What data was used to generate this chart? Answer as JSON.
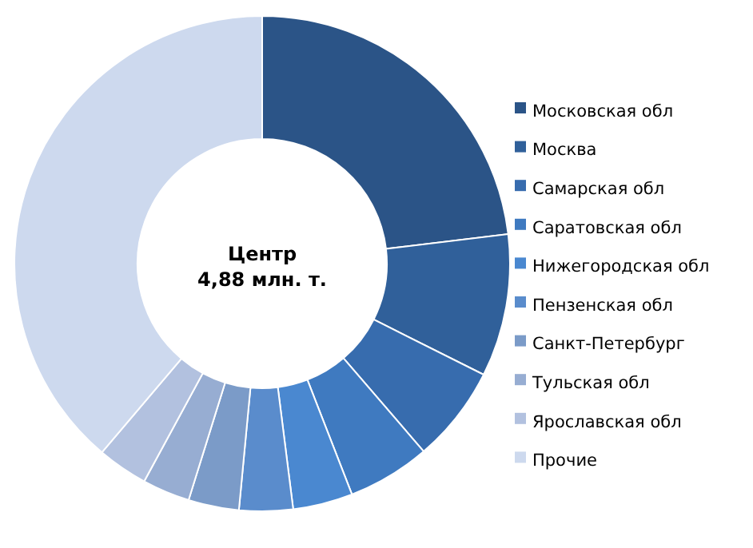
{
  "chart_data": {
    "type": "donut",
    "title": "Центр",
    "subtitle": "4,88 млн. т.",
    "categories": [
      "Московская обл",
      "Москва",
      "Самарская обл",
      "Саратовская обл",
      "Нижегородская обл",
      "Пензенская обл",
      "Санкт-Петербург",
      "Тульская обл",
      "Ярославская обл",
      "Прочие"
    ],
    "values": [
      23.1,
      9.3,
      6.3,
      5.4,
      3.9,
      3.5,
      3.3,
      3.1,
      3.3,
      38.8
    ],
    "colors": [
      "#2b5487",
      "#30609a",
      "#376cae",
      "#3f7ac0",
      "#4a88d0",
      "#5a8ccc",
      "#7b9bc8",
      "#97add2",
      "#b2c1df",
      "#cdd9ee"
    ],
    "legend": "right"
  }
}
